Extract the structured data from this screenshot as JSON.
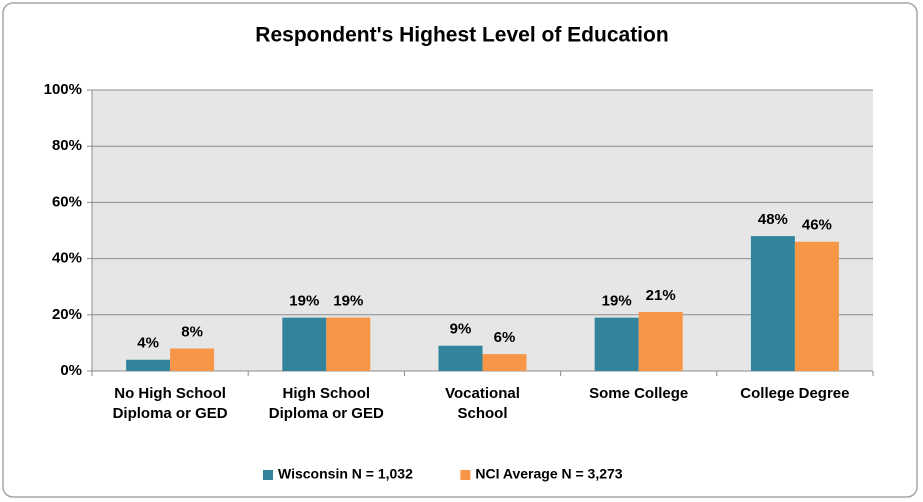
{
  "chart_data": {
    "type": "bar",
    "title": "Respondent's Highest Level of Education",
    "categories": [
      "No High School\nDiploma or GED",
      "High School\nDiploma or GED",
      "Vocational\nSchool",
      "Some College",
      "College Degree"
    ],
    "series": [
      {
        "name": "Wisconsin N = 1,032",
        "color": "#31849b",
        "values": [
          4,
          19,
          9,
          19,
          48
        ],
        "value_labels": [
          "4%",
          "19%",
          "9%",
          "19%",
          "48%"
        ]
      },
      {
        "name": "NCI Average N = 3,273",
        "color": "#f79646",
        "values": [
          8,
          19,
          6,
          21,
          46
        ],
        "value_labels": [
          "8%",
          "19%",
          "6%",
          "21%",
          "46%"
        ]
      }
    ],
    "ylim": [
      0,
      100
    ],
    "yticks": [
      {
        "value": 0,
        "label": "0%"
      },
      {
        "value": 20,
        "label": "20%"
      },
      {
        "value": 40,
        "label": "40%"
      },
      {
        "value": 60,
        "label": "60%"
      },
      {
        "value": 80,
        "label": "80%"
      },
      {
        "value": 100,
        "label": "100%"
      }
    ],
    "grid": true,
    "legend": "bottom"
  }
}
